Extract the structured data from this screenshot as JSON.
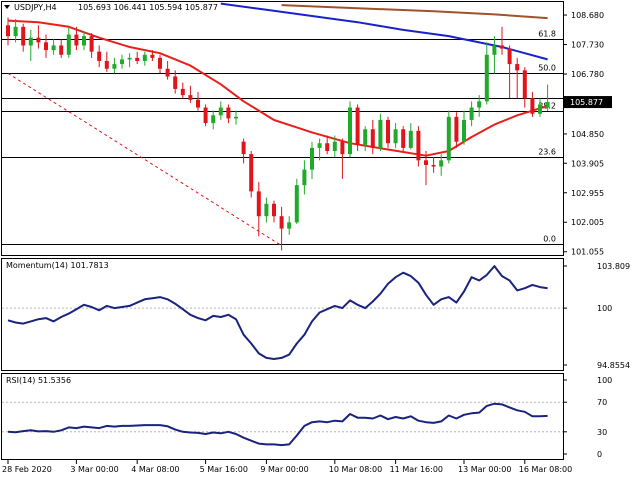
{
  "header": {
    "symbol": "USDJPY,H4",
    "ohlc": "105.693 106.441 105.594 105.877"
  },
  "colors": {
    "bull": "#1faa2a",
    "bear": "#e0141a",
    "ma_fast": "#e8201c",
    "ma_mid": "#1a22c8",
    "ma_slow": "#a0522d",
    "fib_trend": "#e0141a",
    "indicator": "#1a237e",
    "price_tag_bg": "#000000"
  },
  "panes": {
    "momentum": {
      "title": "Momentum(14) 101.7813",
      "ticks": [
        "103.809",
        "100",
        "94.8554"
      ]
    },
    "rsi": {
      "title": "RSI(14) 51.5356",
      "ticks": [
        "100",
        "70",
        "30",
        "0"
      ]
    }
  },
  "chart_data": [
    {
      "type": "candlestick",
      "title": "USDJPY,H4",
      "price_axis_ticks": [
        "108.680",
        "107.730",
        "106.780",
        "105.830",
        "104.850",
        "103.905",
        "102.955",
        "102.005",
        "101.055"
      ],
      "last_price": "105.877",
      "ylim": [
        100.95,
        109.1
      ],
      "fibonacci_levels": [
        {
          "label": "61.8",
          "price": 107.92
        },
        {
          "label": "50.0",
          "price": 106.82
        },
        {
          "label": "38.2",
          "price": 105.6
        },
        {
          "label": "23.6",
          "price": 104.11
        },
        {
          "label": "0.0",
          "price": 101.3
        }
      ],
      "extra_horizontal_levels": [
        106.0
      ],
      "candles": [
        [
          108.35,
          108.6,
          107.7,
          108.0
        ],
        [
          108.0,
          108.55,
          107.8,
          108.3
        ],
        [
          108.3,
          108.4,
          107.5,
          107.7
        ],
        [
          107.7,
          108.2,
          107.2,
          107.95
        ],
        [
          107.95,
          108.35,
          107.6,
          107.8
        ],
        [
          107.8,
          108.05,
          107.3,
          107.55
        ],
        [
          107.55,
          107.9,
          107.4,
          107.7
        ],
        [
          107.7,
          107.9,
          107.3,
          107.4
        ],
        [
          107.4,
          108.3,
          107.3,
          108.05
        ],
        [
          108.05,
          108.3,
          107.55,
          107.7
        ],
        [
          107.7,
          108.15,
          107.55,
          108.0
        ],
        [
          108.0,
          108.1,
          107.3,
          107.5
        ],
        [
          107.5,
          107.7,
          107.0,
          107.2
        ],
        [
          107.2,
          107.5,
          106.85,
          106.95
        ],
        [
          106.95,
          107.3,
          106.8,
          107.1
        ],
        [
          107.1,
          107.4,
          106.95,
          107.25
        ],
        [
          107.25,
          107.45,
          107.0,
          107.3
        ],
        [
          107.3,
          107.5,
          107.1,
          107.2
        ],
        [
          107.2,
          107.5,
          107.05,
          107.4
        ],
        [
          107.4,
          107.55,
          107.2,
          107.3
        ],
        [
          107.3,
          107.4,
          106.8,
          106.95
        ],
        [
          106.95,
          107.2,
          106.6,
          106.7
        ],
        [
          106.7,
          106.9,
          106.15,
          106.3
        ],
        [
          106.3,
          106.5,
          106.0,
          106.1
        ],
        [
          106.1,
          106.4,
          105.85,
          105.95
        ],
        [
          105.95,
          106.2,
          105.6,
          105.7
        ],
        [
          105.7,
          105.8,
          105.1,
          105.2
        ],
        [
          105.2,
          105.6,
          105.0,
          105.45
        ],
        [
          105.45,
          105.9,
          105.3,
          105.7
        ],
        [
          105.7,
          105.8,
          105.2,
          105.35
        ],
        [
          105.35,
          105.6,
          105.15,
          105.4
        ],
        [
          104.6,
          104.7,
          103.9,
          104.2
        ],
        [
          104.2,
          104.3,
          102.8,
          103.0
        ],
        [
          103.0,
          103.3,
          101.55,
          102.2
        ],
        [
          102.2,
          102.8,
          102.0,
          102.6
        ],
        [
          102.6,
          102.7,
          102.0,
          102.2
        ],
        [
          102.2,
          102.5,
          101.1,
          101.8
        ],
        [
          101.8,
          102.2,
          101.6,
          102.0
        ],
        [
          102.0,
          103.4,
          101.95,
          103.2
        ],
        [
          103.2,
          104.0,
          102.9,
          103.7
        ],
        [
          103.7,
          104.6,
          103.4,
          104.4
        ],
        [
          104.4,
          104.7,
          104.0,
          104.55
        ],
        [
          104.55,
          104.8,
          104.2,
          104.3
        ],
        [
          104.3,
          104.8,
          104.1,
          104.6
        ],
        [
          104.6,
          104.7,
          103.4,
          104.2
        ],
        [
          104.2,
          105.9,
          104.1,
          105.7
        ],
        [
          105.7,
          105.8,
          104.3,
          104.5
        ],
        [
          104.5,
          105.1,
          104.3,
          105.0
        ],
        [
          105.0,
          105.3,
          104.2,
          104.4
        ],
        [
          104.4,
          105.5,
          104.3,
          105.3
        ],
        [
          105.3,
          105.4,
          104.4,
          104.55
        ],
        [
          104.55,
          105.2,
          104.4,
          105.0
        ],
        [
          105.0,
          105.1,
          104.3,
          104.4
        ],
        [
          104.4,
          105.2,
          104.35,
          104.95
        ],
        [
          104.95,
          105.1,
          103.8,
          104.0
        ],
        [
          104.0,
          104.3,
          103.2,
          103.85
        ],
        [
          103.85,
          104.1,
          103.6,
          103.8
        ],
        [
          103.8,
          104.2,
          103.5,
          104.0
        ],
        [
          104.0,
          105.6,
          103.9,
          105.4
        ],
        [
          105.4,
          105.55,
          104.4,
          104.6
        ],
        [
          104.6,
          105.6,
          104.5,
          105.3
        ],
        [
          105.3,
          105.9,
          105.1,
          105.7
        ],
        [
          105.7,
          106.1,
          105.4,
          105.9
        ],
        [
          105.9,
          107.8,
          105.8,
          107.4
        ],
        [
          107.4,
          108.0,
          106.8,
          107.7
        ],
        [
          107.7,
          108.3,
          107.4,
          107.6
        ],
        [
          107.6,
          107.7,
          106.0,
          107.1
        ],
        [
          107.1,
          107.3,
          106.0,
          106.9
        ],
        [
          106.9,
          107.0,
          105.7,
          106.0
        ],
        [
          106.0,
          106.2,
          105.4,
          105.5
        ],
        [
          105.5,
          106.0,
          105.4,
          105.8
        ],
        [
          105.693,
          106.441,
          105.594,
          105.877
        ]
      ],
      "moving_averages": [
        {
          "role": "fast",
          "points": [
            [
              0,
              108.5
            ],
            [
              4,
              108.45
            ],
            [
              8,
              108.3
            ],
            [
              12,
              107.95
            ],
            [
              16,
              107.65
            ],
            [
              20,
              107.45
            ],
            [
              24,
              107.05
            ],
            [
              28,
              106.45
            ],
            [
              31,
              105.9
            ],
            [
              35,
              105.3
            ],
            [
              40,
              104.9
            ],
            [
              45,
              104.55
            ],
            [
              50,
              104.35
            ],
            [
              55,
              104.15
            ],
            [
              58,
              104.3
            ],
            [
              61,
              104.75
            ],
            [
              64,
              105.15
            ],
            [
              67,
              105.45
            ],
            [
              69,
              105.6
            ],
            [
              71,
              105.75
            ]
          ]
        },
        {
          "role": "mid",
          "points": [
            [
              28,
              109.05
            ],
            [
              34,
              108.85
            ],
            [
              40,
              108.65
            ],
            [
              46,
              108.45
            ],
            [
              52,
              108.2
            ],
            [
              58,
              108.0
            ],
            [
              62,
              107.8
            ],
            [
              65,
              107.65
            ],
            [
              68,
              107.45
            ],
            [
              71,
              107.25
            ]
          ]
        },
        {
          "role": "slow",
          "points": [
            [
              36,
              109.0
            ],
            [
              46,
              108.9
            ],
            [
              56,
              108.8
            ],
            [
              64,
              108.7
            ],
            [
              71,
              108.58
            ]
          ]
        }
      ],
      "trend_line": {
        "from": [
          0,
          106.8
        ],
        "to": [
          36,
          101.25
        ]
      }
    },
    {
      "type": "line",
      "title": "Momentum(14) 101.7813",
      "ylim": [
        94.8554,
        103.809
      ],
      "values": [
        98.9,
        98.7,
        98.6,
        98.8,
        99.0,
        99.1,
        98.8,
        99.2,
        99.5,
        99.9,
        100.3,
        100.1,
        99.8,
        100.2,
        100.0,
        100.1,
        100.2,
        100.5,
        100.8,
        100.9,
        101.0,
        100.8,
        100.4,
        99.9,
        99.4,
        99.1,
        98.9,
        99.3,
        99.2,
        99.4,
        99.0,
        97.6,
        96.8,
        95.9,
        95.5,
        95.4,
        95.5,
        95.8,
        96.8,
        97.6,
        98.8,
        99.6,
        99.9,
        100.2,
        100.0,
        100.7,
        100.3,
        100.0,
        100.6,
        101.3,
        102.2,
        102.8,
        103.2,
        102.9,
        102.3,
        101.2,
        100.3,
        100.8,
        101.0,
        100.5,
        101.5,
        102.8,
        102.5,
        103.0,
        103.8,
        102.9,
        102.5,
        101.6,
        101.8,
        102.1,
        101.9,
        101.8
      ]
    },
    {
      "type": "line",
      "title": "RSI(14) 51.5356",
      "ylim": [
        0,
        100
      ],
      "values": [
        30.0,
        29.5,
        31.0,
        32.0,
        30.5,
        31.0,
        30.0,
        32.0,
        36.0,
        35.0,
        37.0,
        36.0,
        35.0,
        38.0,
        37.0,
        38.0,
        38.0,
        38.5,
        39.0,
        39.0,
        39.0,
        37.5,
        33.0,
        30.0,
        29.0,
        28.5,
        27.0,
        29.0,
        28.0,
        30.0,
        27.0,
        22.0,
        18.0,
        14.0,
        13.0,
        13.0,
        12.0,
        13.0,
        25.0,
        38.0,
        43.0,
        44.0,
        43.0,
        45.0,
        44.0,
        54.0,
        49.0,
        49.0,
        48.0,
        52.0,
        47.0,
        50.0,
        48.0,
        51.0,
        45.0,
        43.0,
        42.0,
        44.0,
        52.0,
        48.0,
        53.0,
        55.0,
        56.0,
        65.0,
        68.0,
        67.0,
        63.0,
        59.0,
        57.0,
        51.0,
        51.0,
        51.5
      ]
    }
  ],
  "time_axis": {
    "labels": [
      {
        "text": "28 Feb 2020",
        "index": 0
      },
      {
        "text": "3 Mar 00:00",
        "index": 9
      },
      {
        "text": "4 Mar 08:00",
        "index": 17
      },
      {
        "text": "5 Mar 16:00",
        "index": 26
      },
      {
        "text": "9 Mar 00:00",
        "index": 34
      },
      {
        "text": "10 Mar 08:00",
        "index": 43
      },
      {
        "text": "11 Mar 16:00",
        "index": 51
      },
      {
        "text": "13 Mar 00:00",
        "index": 60
      },
      {
        "text": "16 Mar 08:00",
        "index": 68
      }
    ]
  }
}
